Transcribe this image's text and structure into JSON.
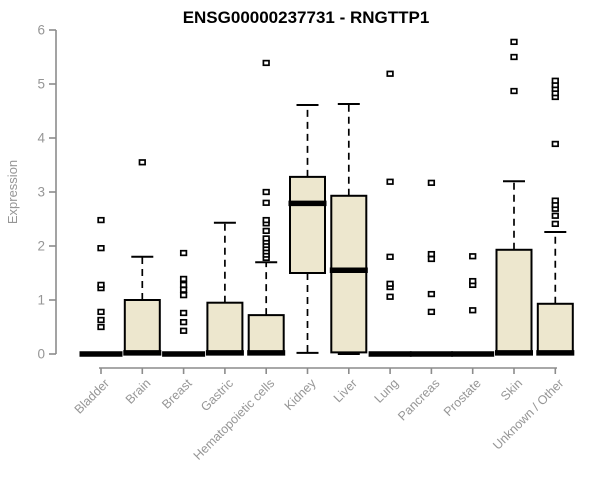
{
  "page": {
    "title": "ENSG00000237731 - RNGTTP1"
  },
  "chart_data": {
    "type": "boxplot",
    "title": "ENSG00000237731 - RNGTTP1",
    "xlabel": "",
    "ylabel": "Expression",
    "ylim": [
      0,
      6
    ],
    "yticks": [
      0,
      1,
      2,
      3,
      4,
      5,
      6
    ],
    "grid": false,
    "legend": null,
    "categories": [
      "Bladder",
      "Brain",
      "Breast",
      "Gastric",
      "Hematopoietic cells",
      "Kidney",
      "Liver",
      "Lung",
      "Pancreas",
      "Prostate",
      "Skin",
      "Unknown / Other"
    ],
    "boxes": [
      {
        "label": "Bladder",
        "whisker_low": 0,
        "q1": 0,
        "median": 0,
        "q3": 0,
        "whisker_high": 0,
        "outliers": [
          0.5,
          0.63,
          0.78,
          1.22,
          1.28,
          1.96,
          2.48
        ]
      },
      {
        "label": "Brain",
        "whisker_low": 0,
        "q1": 0,
        "median": 0.02,
        "q3": 1.0,
        "whisker_high": 1.8,
        "outliers": [
          3.55
        ]
      },
      {
        "label": "Breast",
        "whisker_low": 0,
        "q1": 0,
        "median": 0,
        "q3": 0,
        "whisker_high": 0,
        "outliers": [
          0.43,
          0.59,
          0.76,
          1.09,
          1.19,
          1.28,
          1.39,
          1.87
        ]
      },
      {
        "label": "Gastric",
        "whisker_low": 0,
        "q1": 0,
        "median": 0.02,
        "q3": 0.95,
        "whisker_high": 2.43,
        "outliers": []
      },
      {
        "label": "Hematopoietic cells",
        "whisker_low": 0,
        "q1": 0,
        "median": 0.02,
        "q3": 0.72,
        "whisker_high": 1.7,
        "outliers": [
          1.78,
          1.84,
          1.9,
          1.96,
          2.02,
          2.08,
          2.14,
          2.28,
          2.42,
          2.48,
          2.8,
          3.0,
          5.39
        ]
      },
      {
        "label": "Kidney",
        "whisker_low": 0.02,
        "q1": 1.5,
        "median": 2.79,
        "q3": 3.28,
        "whisker_high": 4.61,
        "outliers": []
      },
      {
        "label": "Liver",
        "whisker_low": 0,
        "q1": 0.03,
        "median": 1.55,
        "q3": 2.93,
        "whisker_high": 4.63,
        "outliers": []
      },
      {
        "label": "Lung",
        "whisker_low": 0,
        "q1": 0,
        "median": 0,
        "q3": 0,
        "whisker_high": 0,
        "outliers": [
          1.06,
          1.24,
          1.3,
          1.8,
          3.19,
          5.19
        ]
      },
      {
        "label": "Pancreas",
        "whisker_low": 0,
        "q1": 0,
        "median": 0,
        "q3": 0,
        "whisker_high": 0,
        "outliers": [
          0.78,
          1.11,
          1.76,
          1.85,
          3.17
        ]
      },
      {
        "label": "Prostate",
        "whisker_low": 0,
        "q1": 0,
        "median": 0,
        "q3": 0,
        "whisker_high": 0,
        "outliers": [
          0.81,
          1.28,
          1.35,
          1.81
        ]
      },
      {
        "label": "Skin",
        "whisker_low": 0,
        "q1": 0,
        "median": 0.02,
        "q3": 1.93,
        "whisker_high": 3.2,
        "outliers": [
          4.87,
          5.5,
          5.78
        ]
      },
      {
        "label": "Unknown / Other",
        "whisker_low": 0,
        "q1": 0,
        "median": 0.02,
        "q3": 0.93,
        "whisker_high": 2.26,
        "outliers": [
          2.41,
          2.56,
          2.69,
          2.76,
          2.84,
          3.89,
          4.76,
          4.83,
          4.91,
          4.98,
          5.06
        ]
      }
    ],
    "style": {
      "box_fill": "#EDE7CE",
      "box_stroke": "#000000",
      "median_color": "#000000",
      "whisker_color": "#000000",
      "outlier_fill": "#FFFFFF",
      "outlier_stroke": "#000000",
      "axis_color": "#8C8C8C",
      "tick_label_color": "#969696",
      "title_color": "#000000",
      "background": "#FFFFFF"
    }
  }
}
